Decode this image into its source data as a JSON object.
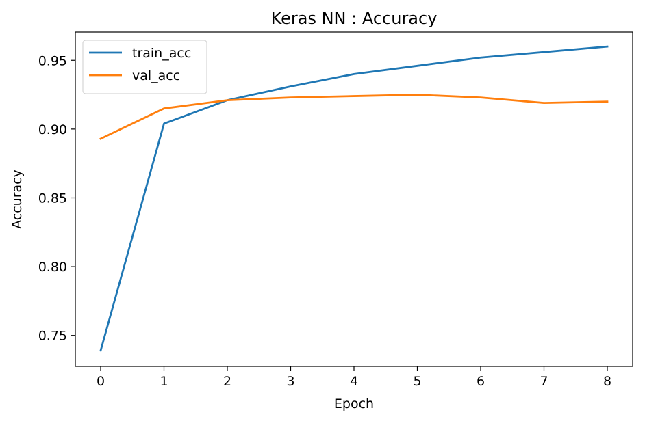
{
  "chart_data": {
    "type": "line",
    "title": "Keras NN : Accuracy",
    "xlabel": "Epoch",
    "ylabel": "Accuracy",
    "x": [
      0,
      1,
      2,
      3,
      4,
      5,
      6,
      7,
      8
    ],
    "xlim": [
      -0.4,
      8.4
    ],
    "ylim": [
      0.7275,
      0.9705
    ],
    "xticks": [
      0,
      1,
      2,
      3,
      4,
      5,
      6,
      7,
      8
    ],
    "xtick_labels": [
      "0",
      "1",
      "2",
      "3",
      "4",
      "5",
      "6",
      "7",
      "8"
    ],
    "yticks": [
      0.75,
      0.8,
      0.85,
      0.9,
      0.95
    ],
    "ytick_labels": [
      "0.75",
      "0.80",
      "0.85",
      "0.90",
      "0.95"
    ],
    "grid": false,
    "legend_position": "top-left",
    "series": [
      {
        "name": "train_acc",
        "color": "#1f77b4",
        "values": [
          0.739,
          0.904,
          0.921,
          0.931,
          0.94,
          0.946,
          0.952,
          0.956,
          0.96
        ]
      },
      {
        "name": "val_acc",
        "color": "#ff7f0e",
        "values": [
          0.893,
          0.915,
          0.921,
          0.923,
          0.924,
          0.925,
          0.923,
          0.919,
          0.92
        ]
      }
    ]
  }
}
